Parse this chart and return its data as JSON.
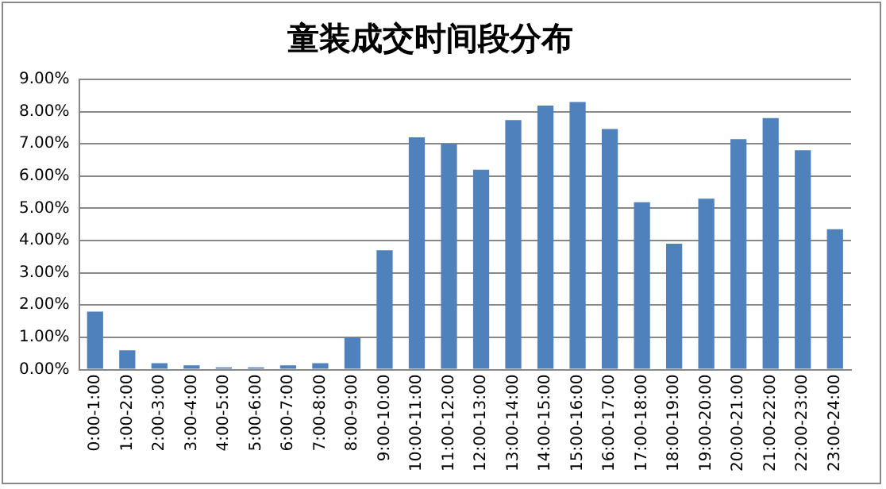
{
  "chart_data": {
    "type": "bar",
    "title": "童装成交时间段分布",
    "categories": [
      "0:00-1:00",
      "1:00-2:00",
      "2:00-3:00",
      "3:00-4:00",
      "4:00-5:00",
      "5:00-6:00",
      "6:00-7:00",
      "7:00-8:00",
      "8:00-9:00",
      "9:00-10:00",
      "10:00-11:00",
      "11:00-12:00",
      "12:00-13:00",
      "13:00-14:00",
      "14:00-15:00",
      "15:00-16:00",
      "16:00-17:00",
      "17:00-18:00",
      "18:00-19:00",
      "19:00-20:00",
      "20:00-21:00",
      "21:00-22:00",
      "22:00-23:00",
      "23:00-24:00"
    ],
    "values": [
      1.8,
      0.6,
      0.2,
      0.13,
      0.07,
      0.07,
      0.13,
      0.2,
      1.0,
      3.7,
      7.2,
      7.0,
      6.2,
      7.74,
      8.19,
      8.3,
      7.46,
      5.19,
      3.9,
      5.3,
      7.15,
      7.8,
      6.8,
      4.35
    ],
    "color": "#4f81bd",
    "ylim": [
      0,
      9
    ],
    "yticks": [
      {
        "value": 0,
        "label": "0.00%"
      },
      {
        "value": 1,
        "label": "1.00%"
      },
      {
        "value": 2,
        "label": "2.00%"
      },
      {
        "value": 3,
        "label": "3.00%"
      },
      {
        "value": 4,
        "label": "4.00%"
      },
      {
        "value": 5,
        "label": "5.00%"
      },
      {
        "value": 6,
        "label": "6.00%"
      },
      {
        "value": 7,
        "label": "7.00%"
      },
      {
        "value": 8,
        "label": "8.00%"
      },
      {
        "value": 9,
        "label": "9.00%"
      }
    ],
    "grid": "y",
    "legend": false
  }
}
